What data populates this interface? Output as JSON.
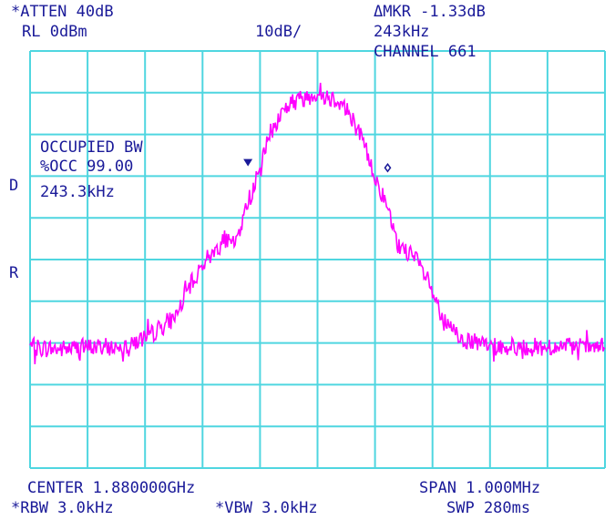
{
  "header": {
    "atten": "*ATTEN 40dB",
    "ref_level": "RL 0dBm",
    "scale": "10dB/",
    "marker_delta": "ΔMKR -1.33dB",
    "marker_freq": "243kHz",
    "channel": "CHANNEL 661"
  },
  "side_labels": {
    "d": "D",
    "r": "R"
  },
  "measurement": {
    "line1": "OCCUPIED BW",
    "line2": "%OCC 99.00",
    "line3": "243.3kHz"
  },
  "footer": {
    "center": "CENTER 1.880000GHz",
    "span": "SPAN 1.000MHz",
    "rbw": "*RBW 3.0kHz",
    "vbw": "*VBW 3.0kHz",
    "sweep": "SWP 280ms"
  },
  "colors": {
    "background": "#ffffff",
    "grid": "#4fd6e0",
    "trace": "#ff00ff",
    "text": "#1a1a99",
    "marker": "#1a1a99"
  },
  "chart_data": {
    "type": "line",
    "x_unit": "MHz offset from center",
    "y_unit": "dBm",
    "xlim": [
      -0.5,
      0.5
    ],
    "ylim": [
      -100,
      0
    ],
    "grid": true,
    "series": [
      {
        "x": [
          -0.5,
          -0.45,
          -0.4,
          -0.35,
          -0.3,
          -0.25,
          -0.22,
          -0.2,
          -0.18,
          -0.16,
          -0.15,
          -0.14,
          -0.12,
          -0.11,
          -0.1,
          -0.09,
          -0.08,
          -0.07,
          -0.06,
          -0.04,
          -0.02,
          0.0,
          0.02,
          0.04,
          0.06,
          0.08,
          0.1,
          0.12,
          0.14,
          0.15,
          0.17,
          0.18,
          0.2,
          0.22,
          0.25,
          0.3,
          0.35,
          0.4,
          0.45,
          0.5
        ],
        "y": [
          -71,
          -71.5,
          -71,
          -71,
          -69,
          -64,
          -56,
          -51,
          -48,
          -45,
          -47,
          -45,
          -36,
          -32,
          -29,
          -23,
          -19,
          -17,
          -14,
          -12,
          -11,
          -10,
          -11,
          -12,
          -16,
          -22,
          -30,
          -37,
          -47,
          -47,
          -50,
          -52,
          -58,
          -65,
          -69,
          -71,
          -71,
          -71,
          -71,
          -71
        ]
      }
    ],
    "markers": [
      {
        "x": -0.121,
        "y": -27,
        "shape": "triangle"
      },
      {
        "x": 0.122,
        "y": -28,
        "shape": "diamond"
      }
    ]
  }
}
